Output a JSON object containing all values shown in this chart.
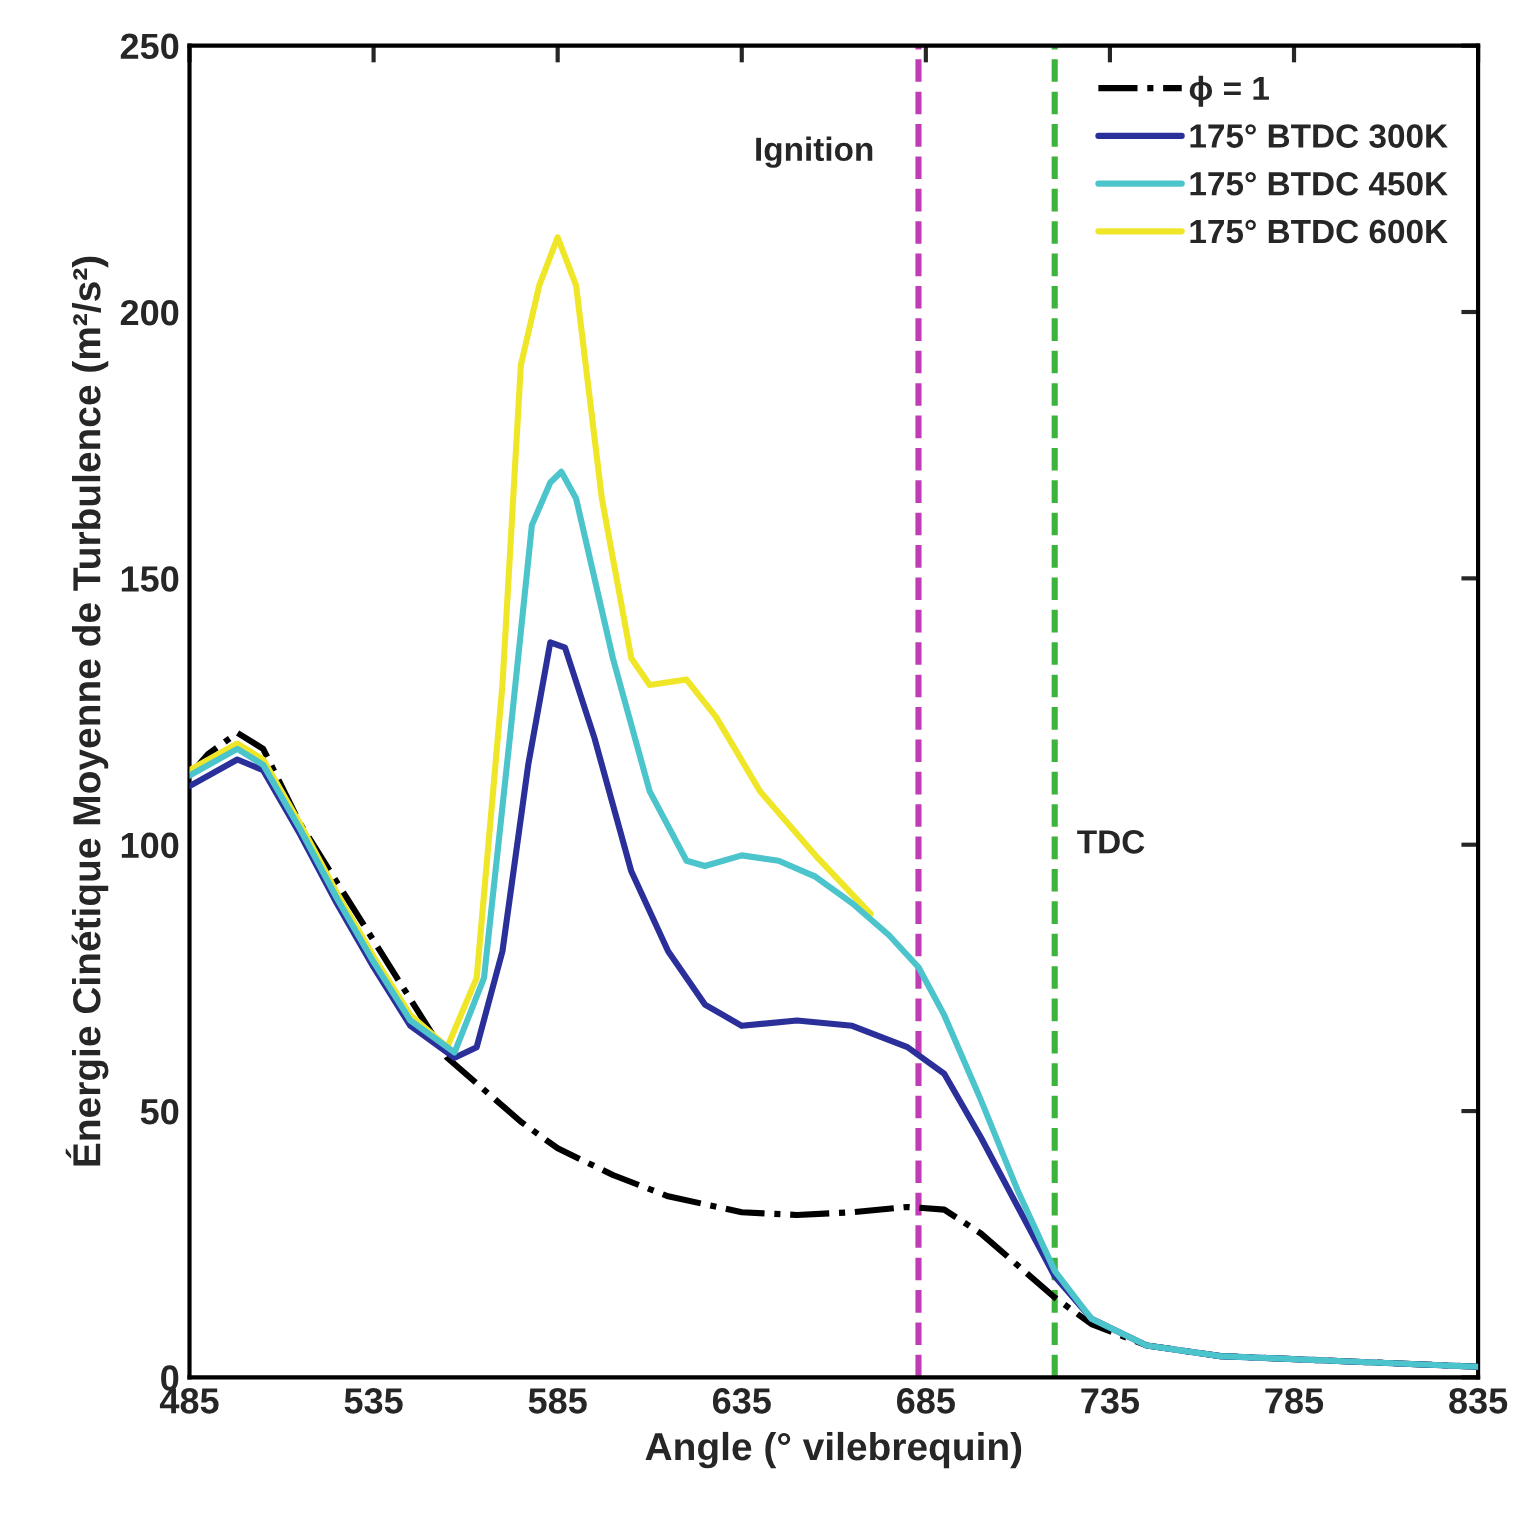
{
  "chart_data": {
    "type": "line",
    "xlabel": "Angle (° vilebrequin)",
    "ylabel": "Énergie Cinétique Moyenne de Turbulence (m²/s²)",
    "xlim": [
      485,
      835
    ],
    "xticks": [
      485,
      535,
      585,
      635,
      685,
      735,
      785,
      835
    ],
    "ylim": [
      0,
      250
    ],
    "yticks": [
      0,
      50,
      100,
      150,
      200,
      250
    ],
    "grid": false,
    "legend": "top right",
    "marker": "none",
    "ref_lines": [
      {
        "axis": "x",
        "value": 683,
        "label": "Ignition",
        "color": "#c03cb4",
        "line_style": "dashed"
      },
      {
        "axis": "x",
        "value": 720,
        "label": "TDC",
        "color": "#3cb43c",
        "line_style": "dashed"
      }
    ],
    "series": [
      {
        "name": "ϕ = 1",
        "color": "#000000",
        "line_style": "dashdot",
        "x": [
          485,
          490,
          498,
          505,
          515,
          525,
          535,
          545,
          555,
          565,
          575,
          585,
          600,
          615,
          635,
          650,
          665,
          680,
          690,
          700,
          710,
          720,
          730,
          745,
          765,
          800,
          835
        ],
        "values": [
          113,
          117,
          121,
          118,
          104,
          null,
          null,
          null,
          60,
          54,
          48,
          43,
          38,
          34,
          31,
          30.5,
          31,
          32,
          31.5,
          27,
          21,
          15,
          10,
          6,
          4,
          3,
          2
        ]
      },
      {
        "name": "175° BTDC 300K",
        "color": "#2b2f9a",
        "line_style": "solid",
        "x": [
          485,
          498,
          505,
          515,
          525,
          535,
          545,
          557,
          563,
          570,
          577,
          583,
          587,
          595,
          605,
          615,
          625,
          635,
          650,
          665,
          680,
          690,
          700,
          710,
          720,
          730,
          745,
          765,
          800,
          835
        ],
        "values": [
          111,
          116,
          114,
          102,
          89,
          77,
          66,
          60,
          62,
          80,
          115,
          138,
          137,
          120,
          95,
          80,
          70,
          66,
          67,
          66,
          62,
          57,
          45,
          32,
          19,
          11,
          6,
          4,
          3,
          2
        ]
      },
      {
        "name": "175° BTDC 450K",
        "color": "#4cc4cc",
        "line_style": "solid",
        "x": [
          485,
          498,
          505,
          515,
          525,
          535,
          545,
          557,
          565,
          572,
          578,
          583,
          586,
          590,
          600,
          610,
          620,
          625,
          635,
          645,
          655,
          665,
          675,
          683,
          690,
          700,
          710,
          720,
          730,
          745,
          765,
          800,
          835
        ],
        "values": [
          113,
          118,
          115,
          103,
          90,
          78,
          67,
          61,
          75,
          120,
          160,
          168,
          170,
          165,
          135,
          110,
          97,
          96,
          98,
          97,
          94,
          89,
          83,
          77,
          68,
          52,
          35,
          20,
          11,
          6,
          4,
          3,
          2
        ]
      },
      {
        "name": "175° BTDC 600K",
        "color": "#f0e628",
        "line_style": "solid",
        "x": [
          485,
          498,
          505,
          515,
          525,
          535,
          545,
          555,
          563,
          570,
          575,
          580,
          585,
          590,
          597,
          605,
          610,
          620,
          628,
          640,
          655,
          670
        ],
        "values": [
          114,
          119,
          116,
          104,
          91,
          79,
          68,
          62,
          75,
          130,
          190,
          205,
          214,
          205,
          165,
          135,
          130,
          131,
          124,
          110,
          98,
          87
        ]
      }
    ]
  }
}
